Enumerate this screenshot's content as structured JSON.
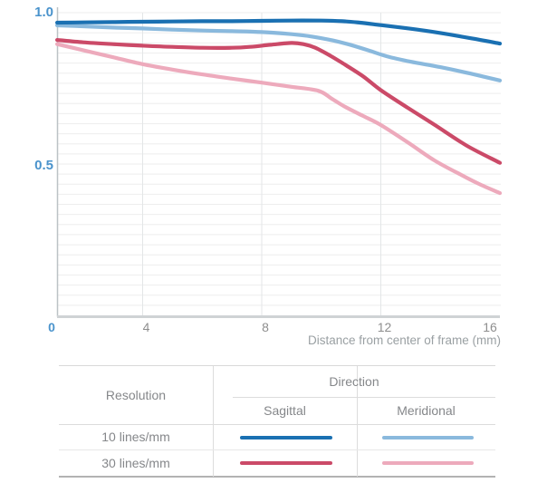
{
  "chart_data": {
    "type": "line",
    "title": "",
    "xlabel": "Distance from center of frame (mm)",
    "ylabel": "",
    "xlim": [
      0,
      16
    ],
    "ylim": [
      0,
      1.0
    ],
    "xticks": [
      "0",
      "4",
      "8",
      "12",
      "16"
    ],
    "yticks": [
      "1.0",
      "0.5"
    ],
    "grid": true,
    "legend_position": "bottom-table",
    "series": [
      {
        "name": "10 lines/mm Sagittal",
        "color": "#1a70b2",
        "points": [
          [
            1.13,
            0.967
          ],
          [
            2,
            0.968
          ],
          [
            3,
            0.969
          ],
          [
            4,
            0.97
          ],
          [
            5,
            0.971
          ],
          [
            6,
            0.972
          ],
          [
            7,
            0.972
          ],
          [
            8,
            0.973
          ],
          [
            9,
            0.974
          ],
          [
            10,
            0.974
          ],
          [
            10.7,
            0.972
          ],
          [
            11.3,
            0.967
          ],
          [
            12,
            0.959
          ],
          [
            13,
            0.947
          ],
          [
            14,
            0.933
          ],
          [
            15,
            0.916
          ],
          [
            16,
            0.898
          ]
        ]
      },
      {
        "name": "10 lines/mm Meridional",
        "color": "#8ab9dd",
        "points": [
          [
            1.13,
            0.958
          ],
          [
            2,
            0.955
          ],
          [
            3,
            0.951
          ],
          [
            4,
            0.948
          ],
          [
            5,
            0.944
          ],
          [
            6,
            0.941
          ],
          [
            7,
            0.939
          ],
          [
            8,
            0.936
          ],
          [
            9,
            0.929
          ],
          [
            9.7,
            0.921
          ],
          [
            10.4,
            0.908
          ],
          [
            11,
            0.893
          ],
          [
            11.6,
            0.875
          ],
          [
            12.2,
            0.856
          ],
          [
            13,
            0.838
          ],
          [
            14,
            0.82
          ],
          [
            15,
            0.799
          ],
          [
            16,
            0.776
          ]
        ]
      },
      {
        "name": "30 lines/mm Sagittal",
        "color": "#cb4a68",
        "points": [
          [
            1.13,
            0.91
          ],
          [
            2,
            0.902
          ],
          [
            3,
            0.896
          ],
          [
            4,
            0.891
          ],
          [
            5,
            0.887
          ],
          [
            6,
            0.884
          ],
          [
            7,
            0.884
          ],
          [
            7.6,
            0.887
          ],
          [
            8.3,
            0.894
          ],
          [
            9,
            0.9
          ],
          [
            9.4,
            0.896
          ],
          [
            9.8,
            0.884
          ],
          [
            10.3,
            0.858
          ],
          [
            10.8,
            0.828
          ],
          [
            11.4,
            0.79
          ],
          [
            12,
            0.744
          ],
          [
            12.9,
            0.686
          ],
          [
            13.8,
            0.63
          ],
          [
            14.9,
            0.56
          ],
          [
            16,
            0.504
          ]
        ]
      },
      {
        "name": "30 lines/mm Meridional",
        "color": "#edaabc",
        "points": [
          [
            1.13,
            0.896
          ],
          [
            2,
            0.876
          ],
          [
            3,
            0.853
          ],
          [
            4,
            0.83
          ],
          [
            5,
            0.812
          ],
          [
            6,
            0.796
          ],
          [
            7,
            0.782
          ],
          [
            8,
            0.769
          ],
          [
            9,
            0.755
          ],
          [
            9.9,
            0.742
          ],
          [
            10.35,
            0.716
          ],
          [
            10.8,
            0.689
          ],
          [
            11.4,
            0.659
          ],
          [
            12,
            0.629
          ],
          [
            12.9,
            0.572
          ],
          [
            13.8,
            0.512
          ],
          [
            14.7,
            0.464
          ],
          [
            15.3,
            0.434
          ],
          [
            16,
            0.404
          ]
        ]
      }
    ],
    "colors": {
      "tick_blue": "#4a93cc",
      "tick_gray": "#8e8e8e",
      "axis_title_gray": "#9aa0a3",
      "h_gridline": "#eeeeee",
      "v_gridline": "#e3e6e7",
      "y_axis": "#bcc2c6",
      "x_axis": "#cfd3d5"
    }
  },
  "legend": {
    "resolution_header": "Resolution",
    "direction_header": "Direction",
    "sagittal_header": "Sagittal",
    "meridional_header": "Meridional",
    "rows": [
      {
        "label": "10 lines/mm",
        "sagittal_color": "#1a70b2",
        "meridional_color": "#8ab9dd"
      },
      {
        "label": "30 lines/mm",
        "sagittal_color": "#cb4a68",
        "meridional_color": "#edaabc"
      }
    ]
  }
}
